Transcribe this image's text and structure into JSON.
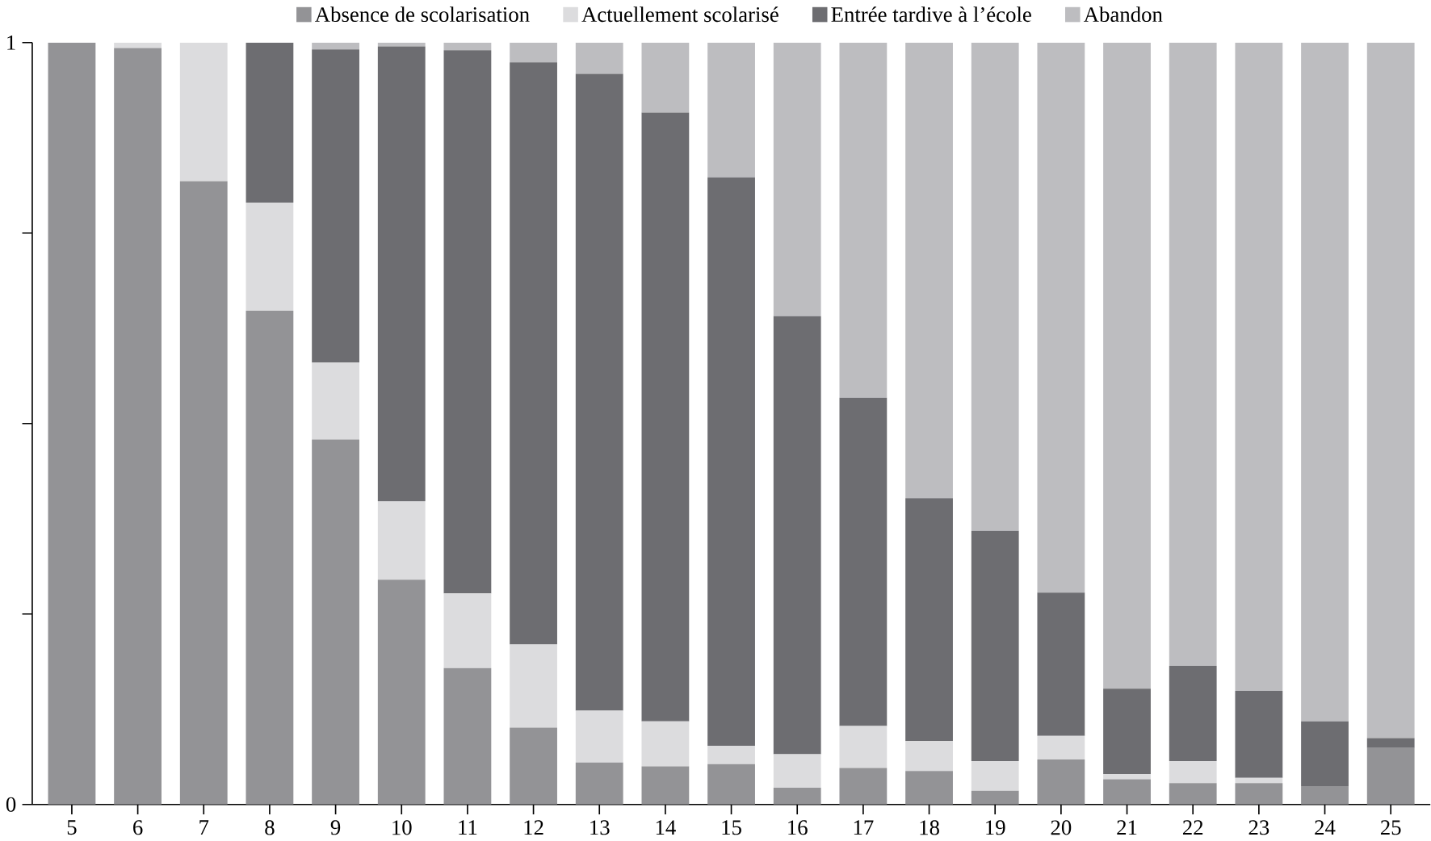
{
  "chart_data": {
    "type": "bar",
    "stacked": true,
    "legend": "top",
    "categories": [
      "5",
      "6",
      "7",
      "8",
      "9",
      "10",
      "11",
      "12",
      "13",
      "14",
      "15",
      "16",
      "17",
      "18",
      "19",
      "20",
      "21",
      "22",
      "23",
      "24",
      "25"
    ],
    "ylim": [
      0,
      1
    ],
    "yticks": [
      0,
      {
        "value": 0.25,
        "label": null
      },
      {
        "value": 0.5,
        "label": null
      },
      {
        "value": 0.75,
        "label": null
      },
      1
    ],
    "series": [
      {
        "name": "Absence de scolarisation",
        "color": "#939396",
        "values": [
          1.0,
          0.993,
          0.818,
          0.648,
          0.479,
          0.295,
          0.179,
          0.101,
          0.055,
          0.05,
          0.053,
          0.022,
          0.048,
          0.044,
          0.018,
          0.059,
          0.033,
          0.028,
          0.028,
          0.024,
          0.074
        ]
      },
      {
        "name": "Actuellement scolarisé",
        "color": "#dcdcde",
        "values": [
          0,
          0.007,
          0.182,
          0.142,
          0.101,
          0.103,
          0.098,
          0.109,
          0.068,
          0.059,
          0.024,
          0.044,
          0.055,
          0.039,
          0.039,
          0.031,
          0.007,
          0.029,
          0.007,
          0,
          0
        ]
      },
      {
        "name": "Entrée tardive à l’école",
        "color": "#6d6d71",
        "values": [
          0,
          0,
          0,
          0.21,
          0.411,
          0.597,
          0.713,
          0.764,
          0.836,
          0.799,
          0.746,
          0.575,
          0.431,
          0.319,
          0.302,
          0.188,
          0.112,
          0.125,
          0.114,
          0.085,
          0.013
        ]
      },
      {
        "name": "Abandon",
        "color": "#bdbdc0",
        "values": [
          0,
          0,
          0,
          0,
          0.009,
          0.005,
          0.01,
          0.026,
          0.041,
          0.092,
          0.177,
          0.359,
          0.466,
          0.598,
          0.641,
          0.722,
          0.848,
          0.818,
          0.851,
          0.891,
          0.913
        ]
      }
    ]
  }
}
